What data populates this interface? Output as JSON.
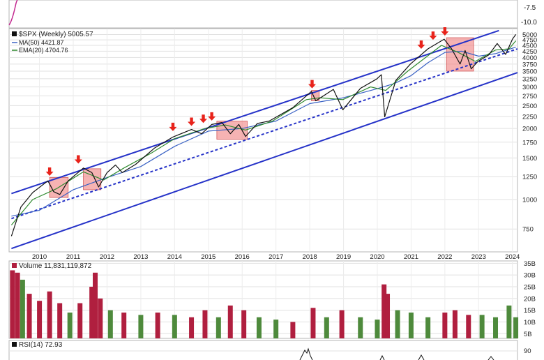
{
  "top_panel": {
    "labels": [
      "-7.5",
      "-10.0"
    ]
  },
  "price_panel": {
    "legend": {
      "title": "$SPX (Weekly) 5005.57",
      "ma": "MA(50) 4421.87",
      "ema": "EMA(20) 4704.76"
    },
    "y_ticks": [
      750,
      1000,
      1250,
      1500,
      1750,
      2000,
      2250,
      2500,
      2750,
      3000,
      3250,
      3500,
      3750,
      4000,
      4250,
      4500,
      4750,
      5000
    ],
    "x_ticks": [
      "2010",
      "2011",
      "2012",
      "2013",
      "2014",
      "2015",
      "2016",
      "2017",
      "2018",
      "2019",
      "2020",
      "2021",
      "2022",
      "2023",
      "2024"
    ],
    "colors": {
      "price": "#111111",
      "ma": "#3a62c4",
      "ema": "#2f8a2f",
      "channel": "#2532c8",
      "arrow": "#e8231b",
      "box": "#f08080"
    }
  },
  "volume_panel": {
    "label": "Volume 11,831,119,872",
    "y_ticks": [
      "5B",
      "10B",
      "15B",
      "20B",
      "25B",
      "30B",
      "35B"
    ],
    "colors": {
      "up": "#4e8a3c",
      "down": "#b01f3f"
    }
  },
  "rsi_panel": {
    "label": "RSI(14) 72.93",
    "y_ticks": [
      "90"
    ]
  },
  "chart_data": {
    "type": "line",
    "title": "$SPX (Weekly) 5005.57",
    "y_scale": "log",
    "ylim": [
      600,
      5300
    ],
    "xlim": [
      2009.1,
      2024.15
    ],
    "series": [
      {
        "name": "$SPX (Weekly)",
        "points": [
          [
            2009.17,
            700
          ],
          [
            2009.45,
            930
          ],
          [
            2009.8,
            1070
          ],
          [
            2010.25,
            1200
          ],
          [
            2010.42,
            1080
          ],
          [
            2010.6,
            1050
          ],
          [
            2010.85,
            1200
          ],
          [
            2011.3,
            1360
          ],
          [
            2011.55,
            1300
          ],
          [
            2011.75,
            1130
          ],
          [
            2012.0,
            1300
          ],
          [
            2012.25,
            1400
          ],
          [
            2012.45,
            1300
          ],
          [
            2012.85,
            1410
          ],
          [
            2013.4,
            1650
          ],
          [
            2013.95,
            1840
          ],
          [
            2014.5,
            1980
          ],
          [
            2014.8,
            1900
          ],
          [
            2015.1,
            2080
          ],
          [
            2015.4,
            2120
          ],
          [
            2015.65,
            1900
          ],
          [
            2015.9,
            2080
          ],
          [
            2016.1,
            1850
          ],
          [
            2016.45,
            2100
          ],
          [
            2016.8,
            2150
          ],
          [
            2017.5,
            2450
          ],
          [
            2018.05,
            2870
          ],
          [
            2018.18,
            2620
          ],
          [
            2018.7,
            2930
          ],
          [
            2018.98,
            2400
          ],
          [
            2019.5,
            2960
          ],
          [
            2019.98,
            3240
          ],
          [
            2020.12,
            3380
          ],
          [
            2020.22,
            2240
          ],
          [
            2020.55,
            3200
          ],
          [
            2020.98,
            3750
          ],
          [
            2021.5,
            4350
          ],
          [
            2021.98,
            4780
          ],
          [
            2022.2,
            4350
          ],
          [
            2022.45,
            3750
          ],
          [
            2022.6,
            4280
          ],
          [
            2022.78,
            3580
          ],
          [
            2022.98,
            3850
          ],
          [
            2023.3,
            4100
          ],
          [
            2023.55,
            4580
          ],
          [
            2023.8,
            4120
          ],
          [
            2024.0,
            4780
          ],
          [
            2024.1,
            5005
          ]
        ]
      },
      {
        "name": "MA(50) 4421.87",
        "points": [
          [
            2009.17,
            850
          ],
          [
            2010.0,
            900
          ],
          [
            2011.0,
            1100
          ],
          [
            2012.0,
            1240
          ],
          [
            2013.0,
            1380
          ],
          [
            2014.0,
            1680
          ],
          [
            2015.0,
            1950
          ],
          [
            2016.0,
            2000
          ],
          [
            2017.0,
            2150
          ],
          [
            2018.0,
            2550
          ],
          [
            2019.0,
            2700
          ],
          [
            2020.0,
            2950
          ],
          [
            2020.5,
            3100
          ],
          [
            2021.0,
            3350
          ],
          [
            2021.5,
            3800
          ],
          [
            2022.0,
            4200
          ],
          [
            2022.5,
            4250
          ],
          [
            2023.0,
            4050
          ],
          [
            2023.5,
            4150
          ],
          [
            2024.1,
            4422
          ]
        ]
      },
      {
        "name": "EMA(20) 4704.76",
        "points": [
          [
            2009.17,
            780
          ],
          [
            2009.8,
            1000
          ],
          [
            2010.5,
            1110
          ],
          [
            2011.3,
            1310
          ],
          [
            2011.9,
            1210
          ],
          [
            2012.5,
            1360
          ],
          [
            2013.3,
            1570
          ],
          [
            2014.0,
            1810
          ],
          [
            2014.9,
            2000
          ],
          [
            2015.5,
            2070
          ],
          [
            2016.1,
            1970
          ],
          [
            2016.9,
            2150
          ],
          [
            2017.9,
            2650
          ],
          [
            2018.3,
            2700
          ],
          [
            2018.98,
            2650
          ],
          [
            2019.8,
            3000
          ],
          [
            2020.25,
            2900
          ],
          [
            2020.9,
            3500
          ],
          [
            2021.9,
            4500
          ],
          [
            2022.4,
            4200
          ],
          [
            2022.9,
            3850
          ],
          [
            2023.5,
            4300
          ],
          [
            2023.9,
            4350
          ],
          [
            2024.1,
            4705
          ]
        ]
      }
    ],
    "channel_lines": [
      {
        "name": "upper",
        "from": [
          2009.17,
          1060
        ],
        "to": [
          2023.6,
          5200
        ],
        "style": "solid"
      },
      {
        "name": "middle",
        "from": [
          2009.17,
          830
        ],
        "to": [
          2024.15,
          4350
        ],
        "style": "dashed"
      },
      {
        "name": "lower",
        "from": [
          2009.17,
          620
        ],
        "to": [
          2024.15,
          3450
        ],
        "style": "solid"
      }
    ],
    "highlight_boxes": [
      {
        "x": [
          2010.3,
          2010.85
        ],
        "y": [
          1020,
          1240
        ]
      },
      {
        "x": [
          2011.3,
          2011.82
        ],
        "y": [
          1100,
          1350
        ]
      },
      {
        "x": [
          2015.25,
          2016.15
        ],
        "y": [
          1800,
          2150
        ]
      },
      {
        "x": [
          2018.05,
          2018.28
        ],
        "y": [
          2620,
          2900
        ]
      },
      {
        "x": [
          2022.05,
          2022.85
        ],
        "y": [
          3500,
          4850
        ]
      }
    ],
    "arrows": [
      {
        "x": 2010.3,
        "y": 1260
      },
      {
        "x": 2011.15,
        "y": 1420
      },
      {
        "x": 2013.95,
        "y": 1950
      },
      {
        "x": 2014.5,
        "y": 2050
      },
      {
        "x": 2014.85,
        "y": 2110
      },
      {
        "x": 2015.1,
        "y": 2160
      },
      {
        "x": 2018.07,
        "y": 2960
      },
      {
        "x": 2021.3,
        "y": 4350
      },
      {
        "x": 2021.65,
        "y": 4750
      },
      {
        "x": 2022.0,
        "y": 4950
      }
    ],
    "volume": {
      "name": "Volume",
      "ylim": [
        3,
        36
      ],
      "points": [
        [
          2009.2,
          32,
          "down"
        ],
        [
          2009.35,
          31,
          "down"
        ],
        [
          2009.5,
          28,
          "up"
        ],
        [
          2009.7,
          22,
          "down"
        ],
        [
          2010.0,
          19,
          "down"
        ],
        [
          2010.3,
          23,
          "down"
        ],
        [
          2010.6,
          18,
          "down"
        ],
        [
          2010.9,
          14,
          "up"
        ],
        [
          2011.2,
          18,
          "down"
        ],
        [
          2011.55,
          25,
          "down"
        ],
        [
          2011.65,
          31,
          "down"
        ],
        [
          2011.8,
          20,
          "down"
        ],
        [
          2012.1,
          15,
          "up"
        ],
        [
          2012.5,
          14,
          "down"
        ],
        [
          2013.0,
          13,
          "up"
        ],
        [
          2013.5,
          14,
          "down"
        ],
        [
          2014.0,
          13,
          "up"
        ],
        [
          2014.5,
          12,
          "down"
        ],
        [
          2014.9,
          15,
          "down"
        ],
        [
          2015.3,
          12,
          "up"
        ],
        [
          2015.65,
          17,
          "down"
        ],
        [
          2016.05,
          15,
          "down"
        ],
        [
          2016.5,
          12,
          "up"
        ],
        [
          2017.0,
          11,
          "up"
        ],
        [
          2017.5,
          10,
          "down"
        ],
        [
          2018.1,
          16,
          "down"
        ],
        [
          2018.5,
          12,
          "up"
        ],
        [
          2018.95,
          15,
          "down"
        ],
        [
          2019.5,
          12,
          "up"
        ],
        [
          2020.0,
          11,
          "up"
        ],
        [
          2020.2,
          26,
          "down"
        ],
        [
          2020.3,
          22,
          "down"
        ],
        [
          2020.6,
          15,
          "up"
        ],
        [
          2021.0,
          14,
          "up"
        ],
        [
          2021.5,
          12,
          "up"
        ],
        [
          2022.0,
          14,
          "down"
        ],
        [
          2022.3,
          15,
          "down"
        ],
        [
          2022.7,
          13,
          "down"
        ],
        [
          2023.1,
          13,
          "up"
        ],
        [
          2023.5,
          12,
          "up"
        ],
        [
          2023.9,
          17,
          "up"
        ],
        [
          2024.1,
          12,
          "up"
        ]
      ]
    }
  }
}
